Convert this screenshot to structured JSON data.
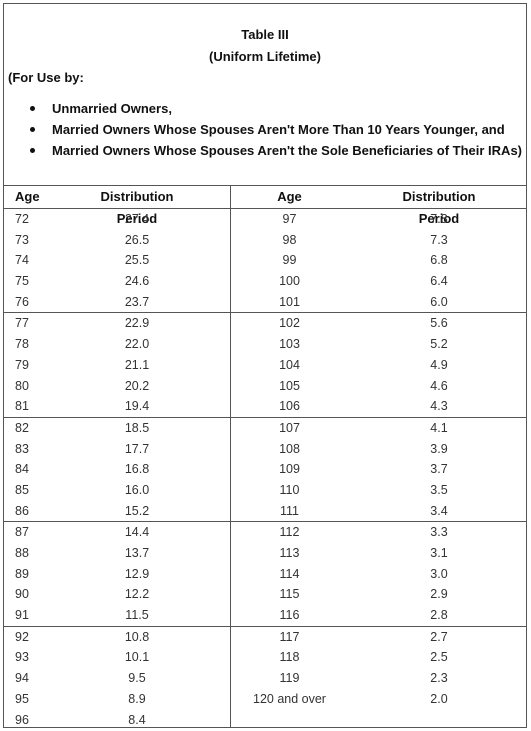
{
  "title": "Table III",
  "subtitle": "(Uniform Lifetime)",
  "for_use_label": "(For Use by:",
  "bullets": [
    "Unmarried Owners,",
    "Married Owners Whose Spouses Aren't More Than 10 Years Younger, and",
    "Married Owners Whose Spouses Aren't the Sole Beneficiaries of Their IRAs)"
  ],
  "columns": {
    "age_left": "Age",
    "dist_left": "Distribution Period",
    "age_right": "Age",
    "dist_right": "Distribution Period"
  },
  "groups": [
    [
      [
        "72",
        "27.4",
        "97",
        "7.8"
      ],
      [
        "73",
        "26.5",
        "98",
        "7.3"
      ],
      [
        "74",
        "25.5",
        "99",
        "6.8"
      ],
      [
        "75",
        "24.6",
        "100",
        "6.4"
      ],
      [
        "76",
        "23.7",
        "101",
        "6.0"
      ]
    ],
    [
      [
        "77",
        "22.9",
        "102",
        "5.6"
      ],
      [
        "78",
        "22.0",
        "103",
        "5.2"
      ],
      [
        "79",
        "21.1",
        "104",
        "4.9"
      ],
      [
        "80",
        "20.2",
        "105",
        "4.6"
      ],
      [
        "81",
        "19.4",
        "106",
        "4.3"
      ]
    ],
    [
      [
        "82",
        "18.5",
        "107",
        "4.1"
      ],
      [
        "83",
        "17.7",
        "108",
        "3.9"
      ],
      [
        "84",
        "16.8",
        "109",
        "3.7"
      ],
      [
        "85",
        "16.0",
        "110",
        "3.5"
      ],
      [
        "86",
        "15.2",
        "111",
        "3.4"
      ]
    ],
    [
      [
        "87",
        "14.4",
        "112",
        "3.3"
      ],
      [
        "88",
        "13.7",
        "113",
        "3.1"
      ],
      [
        "89",
        "12.9",
        "114",
        "3.0"
      ],
      [
        "90",
        "12.2",
        "115",
        "2.9"
      ],
      [
        "91",
        "11.5",
        "116",
        "2.8"
      ]
    ],
    [
      [
        "92",
        "10.8",
        "117",
        "2.7"
      ],
      [
        "93",
        "10.1",
        "118",
        "2.5"
      ],
      [
        "94",
        "9.5",
        "119",
        "2.3"
      ],
      [
        "95",
        "8.9",
        "120 and over",
        "2.0"
      ],
      [
        "96",
        "8.4",
        "",
        ""
      ]
    ]
  ]
}
